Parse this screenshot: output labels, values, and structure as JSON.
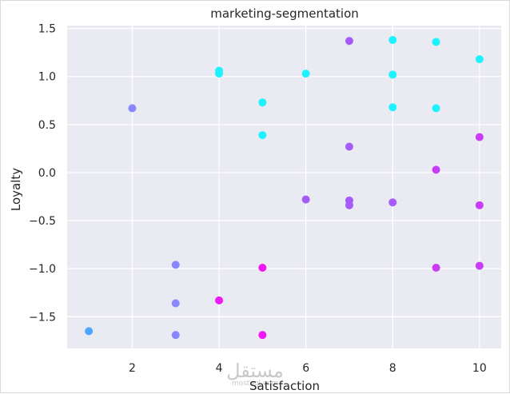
{
  "chart_data": {
    "type": "scatter",
    "title": "marketing-segmentation",
    "xlabel": "Satisfaction",
    "ylabel": "Loyalty",
    "xlim": [
      0.5,
      10.5
    ],
    "ylim": [
      -1.83,
      1.53
    ],
    "xticks": [
      2,
      4,
      6,
      8,
      10
    ],
    "yticks": [
      1.5,
      1.0,
      0.5,
      0.0,
      -0.5,
      -1.0,
      -1.5
    ],
    "ytick_labels": [
      "1.5",
      "1.0",
      "0.5",
      "0.0",
      "−0.5",
      "−1.0",
      "−1.5"
    ],
    "grid": true,
    "background_color": "#eaeaf2",
    "points": [
      {
        "x": 1,
        "y": -1.65,
        "color": "#4ca8ff"
      },
      {
        "x": 2,
        "y": 0.67,
        "color": "#8a86ff"
      },
      {
        "x": 3,
        "y": -0.96,
        "color": "#8a86ff"
      },
      {
        "x": 3,
        "y": -1.36,
        "color": "#8a86ff"
      },
      {
        "x": 3,
        "y": -1.69,
        "color": "#8a86ff"
      },
      {
        "x": 4,
        "y": 1.06,
        "color": "#1ff2ff"
      },
      {
        "x": 4,
        "y": 1.03,
        "color": "#1ff2ff"
      },
      {
        "x": 4,
        "y": -1.33,
        "color": "#ee17f5"
      },
      {
        "x": 5,
        "y": 0.73,
        "color": "#1ff2ff"
      },
      {
        "x": 5,
        "y": 0.39,
        "color": "#1ff2ff"
      },
      {
        "x": 5,
        "y": -0.99,
        "color": "#ee17f5"
      },
      {
        "x": 5,
        "y": -1.69,
        "color": "#ee17f5"
      },
      {
        "x": 6,
        "y": 1.03,
        "color": "#1ff2ff"
      },
      {
        "x": 6,
        "y": -0.28,
        "color": "#a55bf7"
      },
      {
        "x": 7,
        "y": 1.37,
        "color": "#a55bf7"
      },
      {
        "x": 7,
        "y": 0.27,
        "color": "#a55bf7"
      },
      {
        "x": 7,
        "y": -0.29,
        "color": "#a55bf7"
      },
      {
        "x": 7,
        "y": -0.34,
        "color": "#a55bf7"
      },
      {
        "x": 8,
        "y": 1.38,
        "color": "#1ff2ff"
      },
      {
        "x": 8,
        "y": 1.02,
        "color": "#1ff2ff"
      },
      {
        "x": 8,
        "y": 0.68,
        "color": "#1ff2ff"
      },
      {
        "x": 8,
        "y": -0.31,
        "color": "#a55bf7"
      },
      {
        "x": 9,
        "y": 1.36,
        "color": "#1ff2ff"
      },
      {
        "x": 9,
        "y": 0.67,
        "color": "#1ff2ff"
      },
      {
        "x": 9,
        "y": 0.03,
        "color": "#c93bf6"
      },
      {
        "x": 9,
        "y": -0.99,
        "color": "#c93bf6"
      },
      {
        "x": 10,
        "y": 1.18,
        "color": "#1ff2ff"
      },
      {
        "x": 10,
        "y": 0.37,
        "color": "#c93bf6"
      },
      {
        "x": 10,
        "y": -0.34,
        "color": "#c93bf6"
      },
      {
        "x": 10,
        "y": -0.97,
        "color": "#c93bf6"
      }
    ]
  },
  "watermark": {
    "text": "مستقل",
    "subtext": "mostaql.com"
  }
}
